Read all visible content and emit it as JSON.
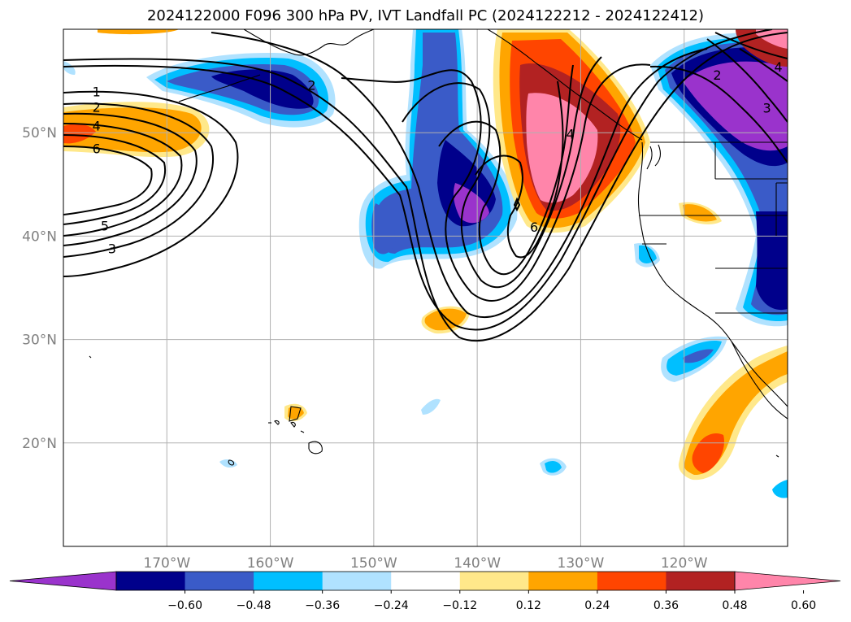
{
  "title": "2024122000 F096 300 hPa PV, IVT Landfall PC (2024122212 - 2024122412)",
  "map": {
    "lon_range": [
      -180,
      -110
    ],
    "lat_range": [
      10,
      60
    ],
    "lat_ticks": [
      {
        "value": 50,
        "label": "50°N"
      },
      {
        "value": 40,
        "label": "40°N"
      },
      {
        "value": 30,
        "label": "30°N"
      },
      {
        "value": 20,
        "label": "20°N"
      }
    ],
    "lon_ticks": [
      {
        "value": -170,
        "label": "170°W"
      },
      {
        "value": -160,
        "label": "160°W"
      },
      {
        "value": -150,
        "label": "150°W"
      },
      {
        "value": -140,
        "label": "140°W"
      },
      {
        "value": -130,
        "label": "130°W"
      },
      {
        "value": -120,
        "label": "120°W"
      }
    ],
    "gridlines": true
  },
  "colorbar": {
    "colors": [
      "#9a33cc",
      "#00008b",
      "#3a5bc8",
      "#00bfff",
      "#b0e2ff",
      "#ffffff",
      "#ffe88a",
      "#ffa500",
      "#ff4500",
      "#b22222",
      "#ff85aa"
    ],
    "tick_labels": [
      "−0.60",
      "−0.48",
      "−0.36",
      "−0.24",
      "−0.12",
      "0.12",
      "0.24",
      "0.36",
      "0.48",
      "0.60"
    ],
    "extend": "both"
  },
  "contour_labels": [
    {
      "text": "1",
      "lon": -176.8,
      "lat": 54.0
    },
    {
      "text": "2",
      "lon": -176.8,
      "lat": 52.5
    },
    {
      "text": "4",
      "lon": -176.8,
      "lat": 50.7
    },
    {
      "text": "6",
      "lon": -176.8,
      "lat": 48.5
    },
    {
      "text": "5",
      "lon": -176.0,
      "lat": 41.0
    },
    {
      "text": "3",
      "lon": -175.3,
      "lat": 38.8
    },
    {
      "text": "2",
      "lon": -156.0,
      "lat": 54.6
    },
    {
      "text": "4",
      "lon": -131.0,
      "lat": 49.9
    },
    {
      "text": "6",
      "lon": -134.5,
      "lat": 40.9
    },
    {
      "text": "2",
      "lon": -116.8,
      "lat": 55.6
    },
    {
      "text": "3",
      "lon": -112.0,
      "lat": 52.4
    },
    {
      "text": "4",
      "lon": -110.9,
      "lat": 56.4
    }
  ]
}
